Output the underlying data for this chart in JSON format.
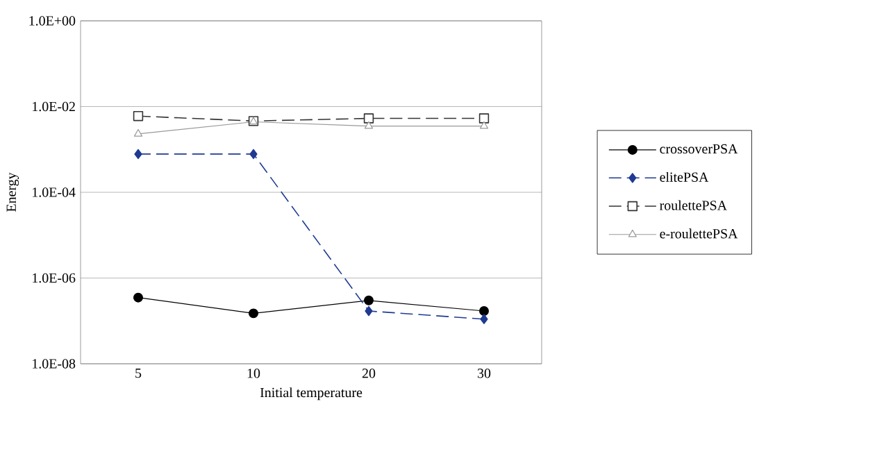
{
  "chart_data": {
    "type": "line",
    "xlabel": "Initial temperature",
    "ylabel": "Energy",
    "categories": [
      "5",
      "10",
      "20",
      "30"
    ],
    "log": "y",
    "ylim": [
      1e-08,
      1
    ],
    "yticks": [
      {
        "value": 1e-08,
        "label": "1.0E-08"
      },
      {
        "value": 1e-06,
        "label": "1.0E-06"
      },
      {
        "value": 0.0001,
        "label": "1.0E-04"
      },
      {
        "value": 0.01,
        "label": "1.0E-02"
      },
      {
        "value": 1,
        "label": "1.0E+00"
      }
    ],
    "grid": "y",
    "legend": "right",
    "series": [
      {
        "name": "crossoverPSA",
        "color": "#000000",
        "marker": "circle",
        "line_style": "solid",
        "values": [
          3.5e-07,
          1.5e-07,
          3e-07,
          1.7e-07
        ]
      },
      {
        "name": "elitePSA",
        "color": "#1f3a93",
        "marker": "diamond",
        "line_style": "dashed",
        "values": [
          0.00078,
          0.00078,
          1.7e-07,
          1.1e-07
        ]
      },
      {
        "name": "roulettePSA",
        "color": "#333333",
        "marker": "square",
        "line_style": "dashed",
        "values": [
          0.006,
          0.0046,
          0.0053,
          0.0053
        ]
      },
      {
        "name": "e-roulettePSA",
        "color": "#999999",
        "marker": "triangle",
        "line_style": "solid",
        "values": [
          0.0023,
          0.0044,
          0.0035,
          0.0035
        ]
      }
    ]
  }
}
